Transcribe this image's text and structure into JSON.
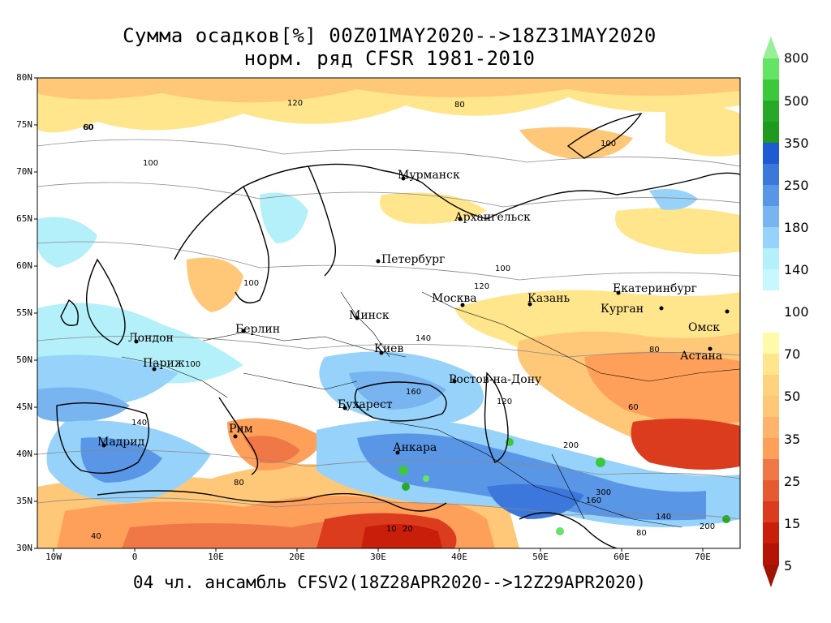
{
  "title": {
    "line1": "Сумма осадков[%] 00Z01MAY2020-->18Z31MAY2020",
    "line2": "норм. ряд CFSR 1981-2010"
  },
  "footer": "04 чл. ансамбль CFSV2(18Z28APR2020-->12Z29APR2020)",
  "axes": {
    "lat_labels": [
      "80N",
      "75N",
      "70N",
      "65N",
      "60N",
      "55N",
      "50N",
      "45N",
      "40N",
      "35N",
      "30N"
    ],
    "lon_labels": [
      "10W",
      "0",
      "10E",
      "20E",
      "30E",
      "40E",
      "50E",
      "60E",
      "70E"
    ]
  },
  "colorbar": {
    "labels": [
      "800",
      "500",
      "350",
      "250",
      "180",
      "140",
      "100",
      "70",
      "50",
      "35",
      "25",
      "15",
      "5"
    ],
    "colors_wet": [
      "#28a828",
      "#3cc83c",
      "#64e464",
      "#96f096"
    ],
    "colors_blue": [
      "#b4f0fa",
      "#96d2fa",
      "#78b4f0",
      "#5a96e6",
      "#3c78dc",
      "#1e5ad2"
    ],
    "colors_dry": [
      "#fffaaa",
      "#ffe68c",
      "#ffc878",
      "#ffa05a",
      "#f07846",
      "#dc3c1e",
      "#c81e0a",
      "#a01400"
    ]
  },
  "cities": [
    {
      "name": "Мурманск"
    },
    {
      "name": "Архангельск"
    },
    {
      "name": "Петербург"
    },
    {
      "name": "Москва"
    },
    {
      "name": "Казань"
    },
    {
      "name": "Екатеринбург"
    },
    {
      "name": "Курган"
    },
    {
      "name": "Омск"
    },
    {
      "name": "Астана"
    },
    {
      "name": "Минск"
    },
    {
      "name": "Берлин"
    },
    {
      "name": "Лондон"
    },
    {
      "name": "Париж"
    },
    {
      "name": "Киев"
    },
    {
      "name": "Ростов-на-Дону"
    },
    {
      "name": "Бухарест"
    },
    {
      "name": "Рим"
    },
    {
      "name": "Мадрид"
    },
    {
      "name": "Анкара"
    }
  ],
  "contour_labels": [
    "80",
    "60",
    "100",
    "120",
    "100",
    "80",
    "100",
    "80",
    "100",
    "120",
    "140",
    "160",
    "200",
    "140",
    "120",
    "100",
    "60",
    "80",
    "40",
    "10",
    "20",
    "300",
    "160",
    "200",
    "80",
    "140"
  ]
}
